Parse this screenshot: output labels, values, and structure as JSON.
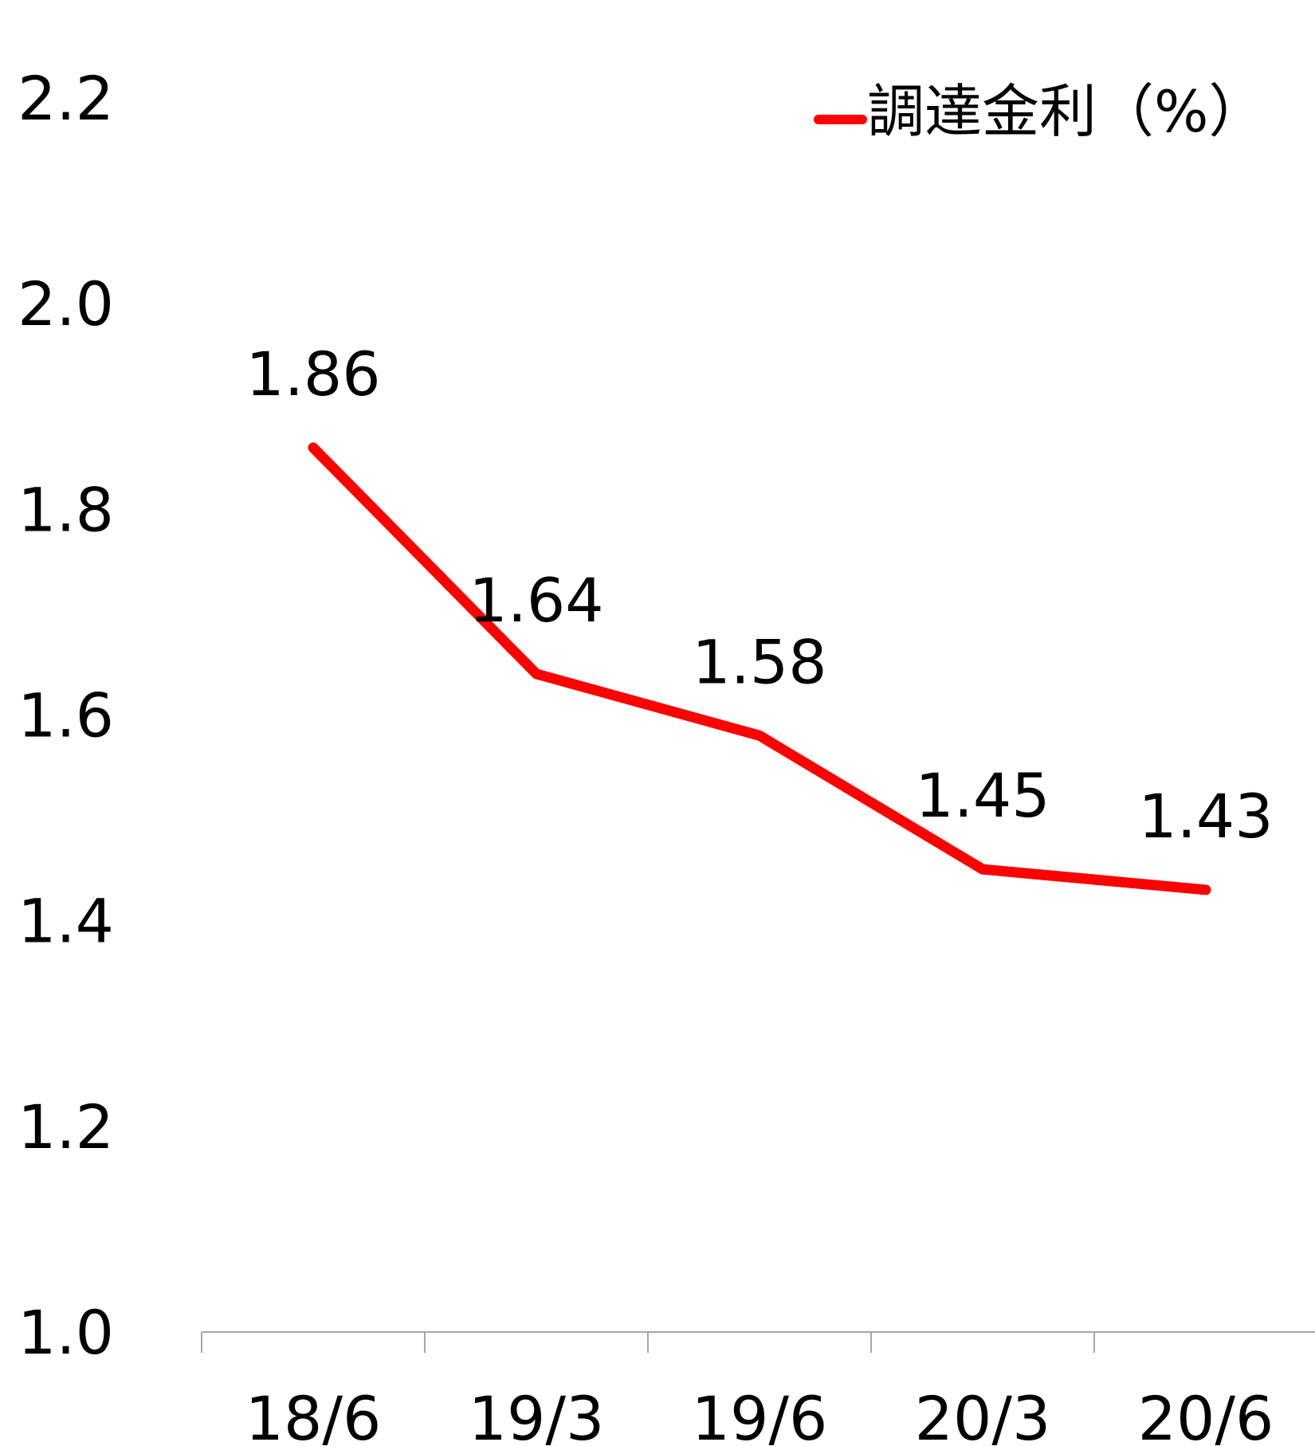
{
  "chart_data": {
    "type": "line",
    "title": "",
    "xlabel": "",
    "ylabel": "",
    "categories": [
      "18/6",
      "19/3",
      "19/6",
      "20/3",
      "20/6"
    ],
    "series": [
      {
        "name": "調達金利（%）",
        "values": [
          1.86,
          1.64,
          1.58,
          1.45,
          1.43
        ],
        "color": "#ff0000"
      }
    ],
    "data_labels": [
      "1.86",
      "1.64",
      "1.58",
      "1.45",
      "1.43"
    ],
    "ylim": [
      1.0,
      2.2
    ],
    "yticks": [
      1.0,
      1.2,
      1.4,
      1.6,
      1.8,
      2.0,
      2.2
    ],
    "ytick_labels": [
      "1.0",
      "1.2",
      "1.4",
      "1.6",
      "1.8",
      "2.0",
      "2.2"
    ],
    "grid": false,
    "legend_position": "top-right",
    "axis_color": "#a6a6a6"
  }
}
